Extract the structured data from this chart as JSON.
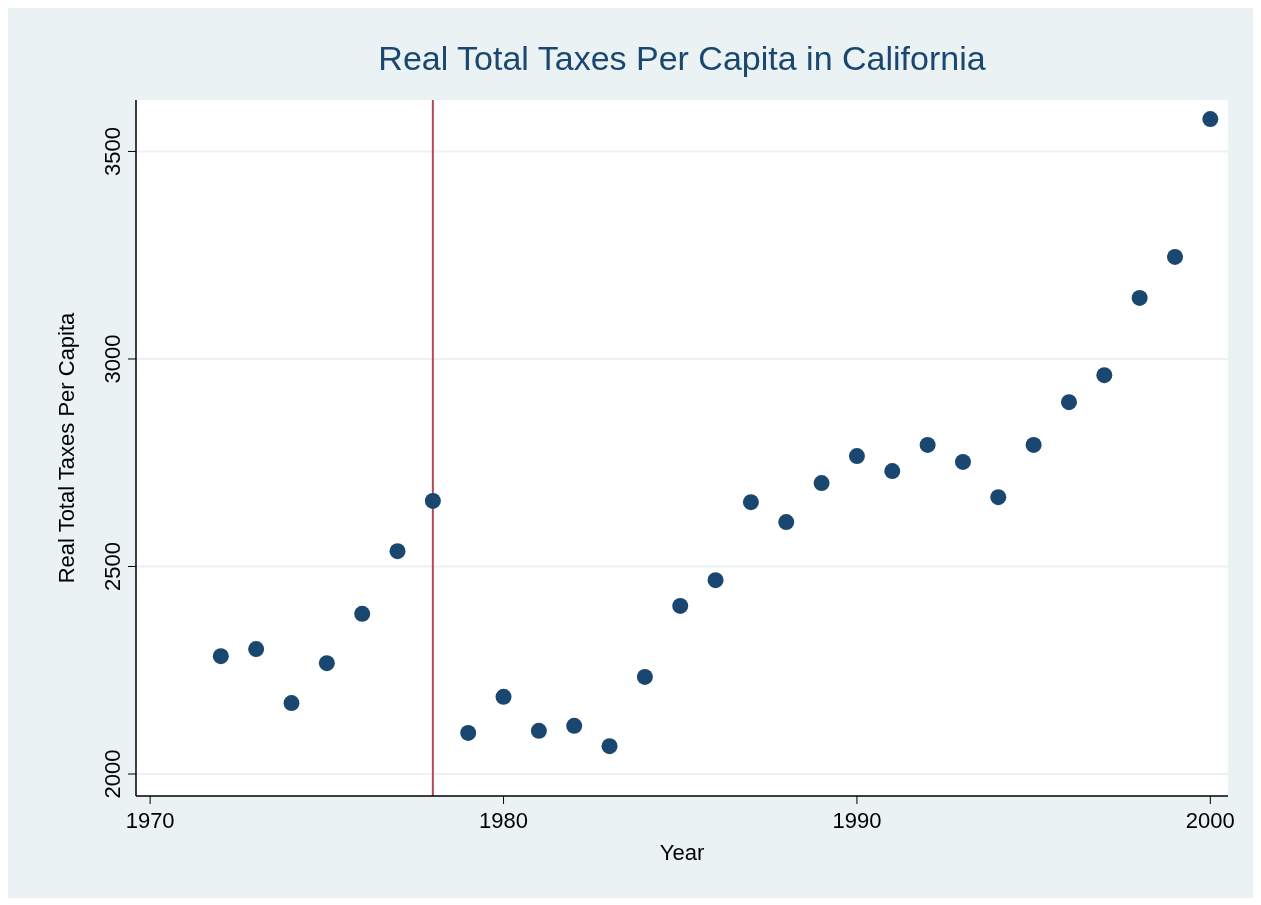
{
  "chart_data": {
    "type": "scatter",
    "title": "Real Total Taxes Per Capita in California",
    "xlabel": "Year",
    "ylabel": "Real Total Taxes Per Capita",
    "x": [
      1972,
      1973,
      1974,
      1975,
      1976,
      1977,
      1978,
      1979,
      1980,
      1981,
      1982,
      1983,
      1984,
      1985,
      1986,
      1987,
      1988,
      1989,
      1990,
      1991,
      1992,
      1993,
      1994,
      1995,
      1996,
      1997,
      1998,
      1999,
      2000
    ],
    "series": [
      {
        "color": "#1a476f",
        "values": [
          2284,
          2301,
          2171,
          2267,
          2386,
          2537,
          2658,
          2099,
          2186,
          2104,
          2116,
          2067,
          2234,
          2405,
          2467,
          2655,
          2607,
          2701,
          2766,
          2730,
          2793,
          2752,
          2667,
          2793,
          2896,
          2961,
          3147,
          3246,
          3578
        ]
      }
    ],
    "xlim": [
      1969.6,
      2000.5
    ],
    "xticks": [
      1970,
      1980,
      1990,
      2000
    ],
    "ylim": [
      1947,
      3624
    ],
    "yticks": [
      2000,
      2500,
      3000,
      3500
    ],
    "grid": "y",
    "marker": "circle",
    "ref_lines": [
      {
        "axis": "x",
        "value": 1978,
        "color": "#b5485a"
      }
    ]
  }
}
